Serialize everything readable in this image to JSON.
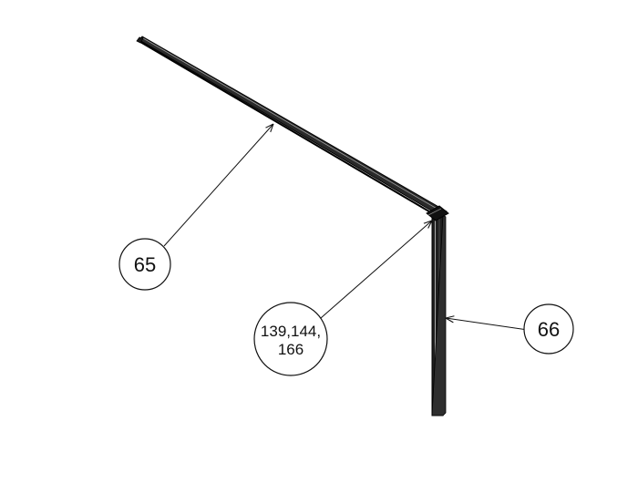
{
  "callouts": {
    "c65": {
      "label": "65"
    },
    "c139": {
      "line1": "139,144,",
      "line2": "166"
    },
    "c66": {
      "label": "66"
    }
  }
}
